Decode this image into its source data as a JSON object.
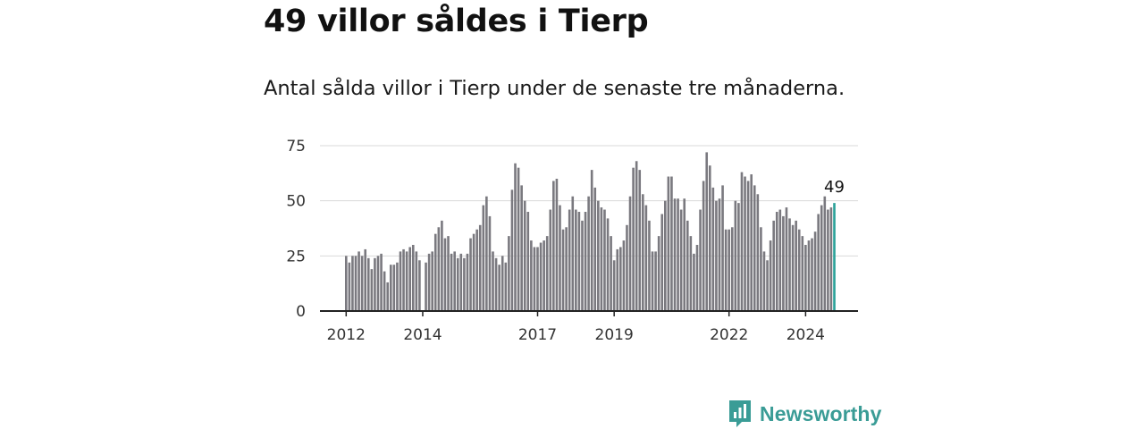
{
  "title": "49 villor såldes i Tierp",
  "subtitle": "Antal sålda villor i Tierp under de senaste tre månaderna.",
  "brand": {
    "name": "Newsworthy",
    "icon": "newsworthy-logo-icon",
    "color": "#3a9c96"
  },
  "colors": {
    "bar": "#7a797f",
    "highlight": "#2aa198",
    "grid": "#d9d9d9",
    "axis": "#222222"
  },
  "chart_data": {
    "type": "bar",
    "title": "49 villor såldes i Tierp",
    "subtitle": "Antal sålda villor i Tierp under de senaste tre månaderna.",
    "xlabel": "",
    "ylabel": "",
    "ylim": [
      0,
      75
    ],
    "yticks": [
      0,
      25,
      50,
      75
    ],
    "grid": true,
    "start": "2012-01",
    "x_ticks": [
      {
        "label": "2012",
        "index": 0
      },
      {
        "label": "2014",
        "index": 24
      },
      {
        "label": "2017",
        "index": 60
      },
      {
        "label": "2019",
        "index": 84
      },
      {
        "label": "2022",
        "index": 120
      },
      {
        "label": "2024",
        "index": 144
      }
    ],
    "values": [
      25,
      22,
      25,
      25,
      27,
      25,
      28,
      24,
      19,
      24,
      25,
      26,
      18,
      13,
      21,
      21,
      22,
      27,
      28,
      27,
      29,
      30,
      27,
      23,
      0,
      22,
      26,
      27,
      35,
      38,
      41,
      33,
      34,
      26,
      27,
      24,
      26,
      24,
      26,
      33,
      35,
      37,
      39,
      48,
      52,
      43,
      27,
      24,
      21,
      25,
      22,
      34,
      55,
      67,
      65,
      57,
      50,
      45,
      32,
      29,
      29,
      31,
      32,
      34,
      46,
      59,
      60,
      48,
      37,
      38,
      46,
      52,
      46,
      45,
      41,
      45,
      52,
      64,
      56,
      50,
      47,
      46,
      42,
      34,
      23,
      28,
      29,
      32,
      39,
      52,
      65,
      68,
      64,
      53,
      48,
      41,
      27,
      27,
      34,
      44,
      50,
      61,
      61,
      51,
      51,
      46,
      51,
      41,
      34,
      26,
      30,
      46,
      59,
      72,
      66,
      56,
      50,
      51,
      57,
      37,
      37,
      38,
      50,
      49,
      63,
      61,
      59,
      62,
      57,
      53,
      38,
      27,
      23,
      32,
      41,
      45,
      46,
      43,
      47,
      42,
      39,
      41,
      37,
      34,
      30,
      32,
      33,
      36,
      44,
      48,
      52,
      46,
      47,
      49
    ],
    "highlight_last": true,
    "annotation": "49"
  }
}
